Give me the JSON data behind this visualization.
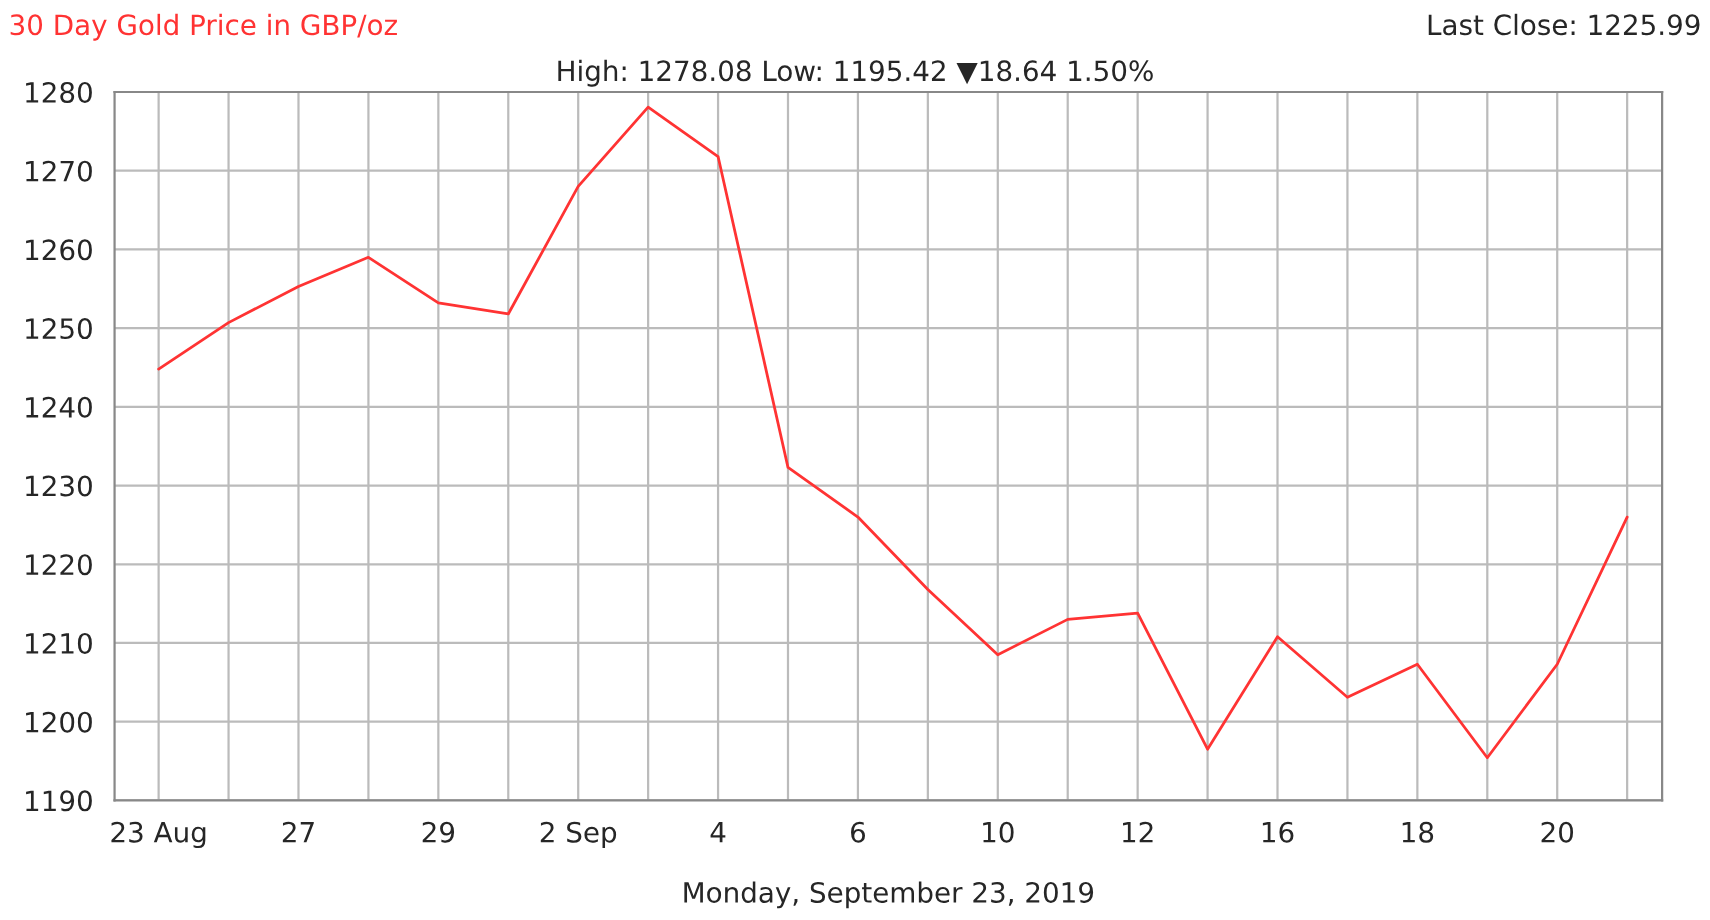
{
  "chart_data": {
    "type": "line",
    "title": "30 Day Gold Price in GBP/oz",
    "subtitle": "High: 1278.08 Low: 1195.42 ▼18.64 1.50%",
    "xlabel": "Monday, September 23, 2019",
    "annotations": [
      "Last Close: 1225.99"
    ],
    "categories": [
      "23 Aug",
      null,
      "27",
      null,
      "29",
      null,
      "2 Sep",
      null,
      "4",
      null,
      "6",
      null,
      "10",
      null,
      "12",
      null,
      "16",
      null,
      "18",
      null,
      "20",
      null
    ],
    "series": [
      {
        "color": "#ff3333",
        "values": [
          1244.8,
          1250.7,
          1255.3,
          1259.0,
          1253.2,
          1251.8,
          1268.0,
          1278.08,
          1271.8,
          1232.3,
          1226.0,
          1216.8,
          1208.5,
          1213.0,
          1213.8,
          1196.5,
          1210.8,
          1203.1,
          1207.3,
          1195.42,
          1207.3,
          1225.99
        ]
      }
    ],
    "ylim": [
      1190,
      1280
    ],
    "yticks": [
      1190,
      1200,
      1210,
      1220,
      1230,
      1240,
      1250,
      1260,
      1270,
      1280
    ],
    "grid": true,
    "marker": "none",
    "line_style": "solid",
    "legend": false
  }
}
